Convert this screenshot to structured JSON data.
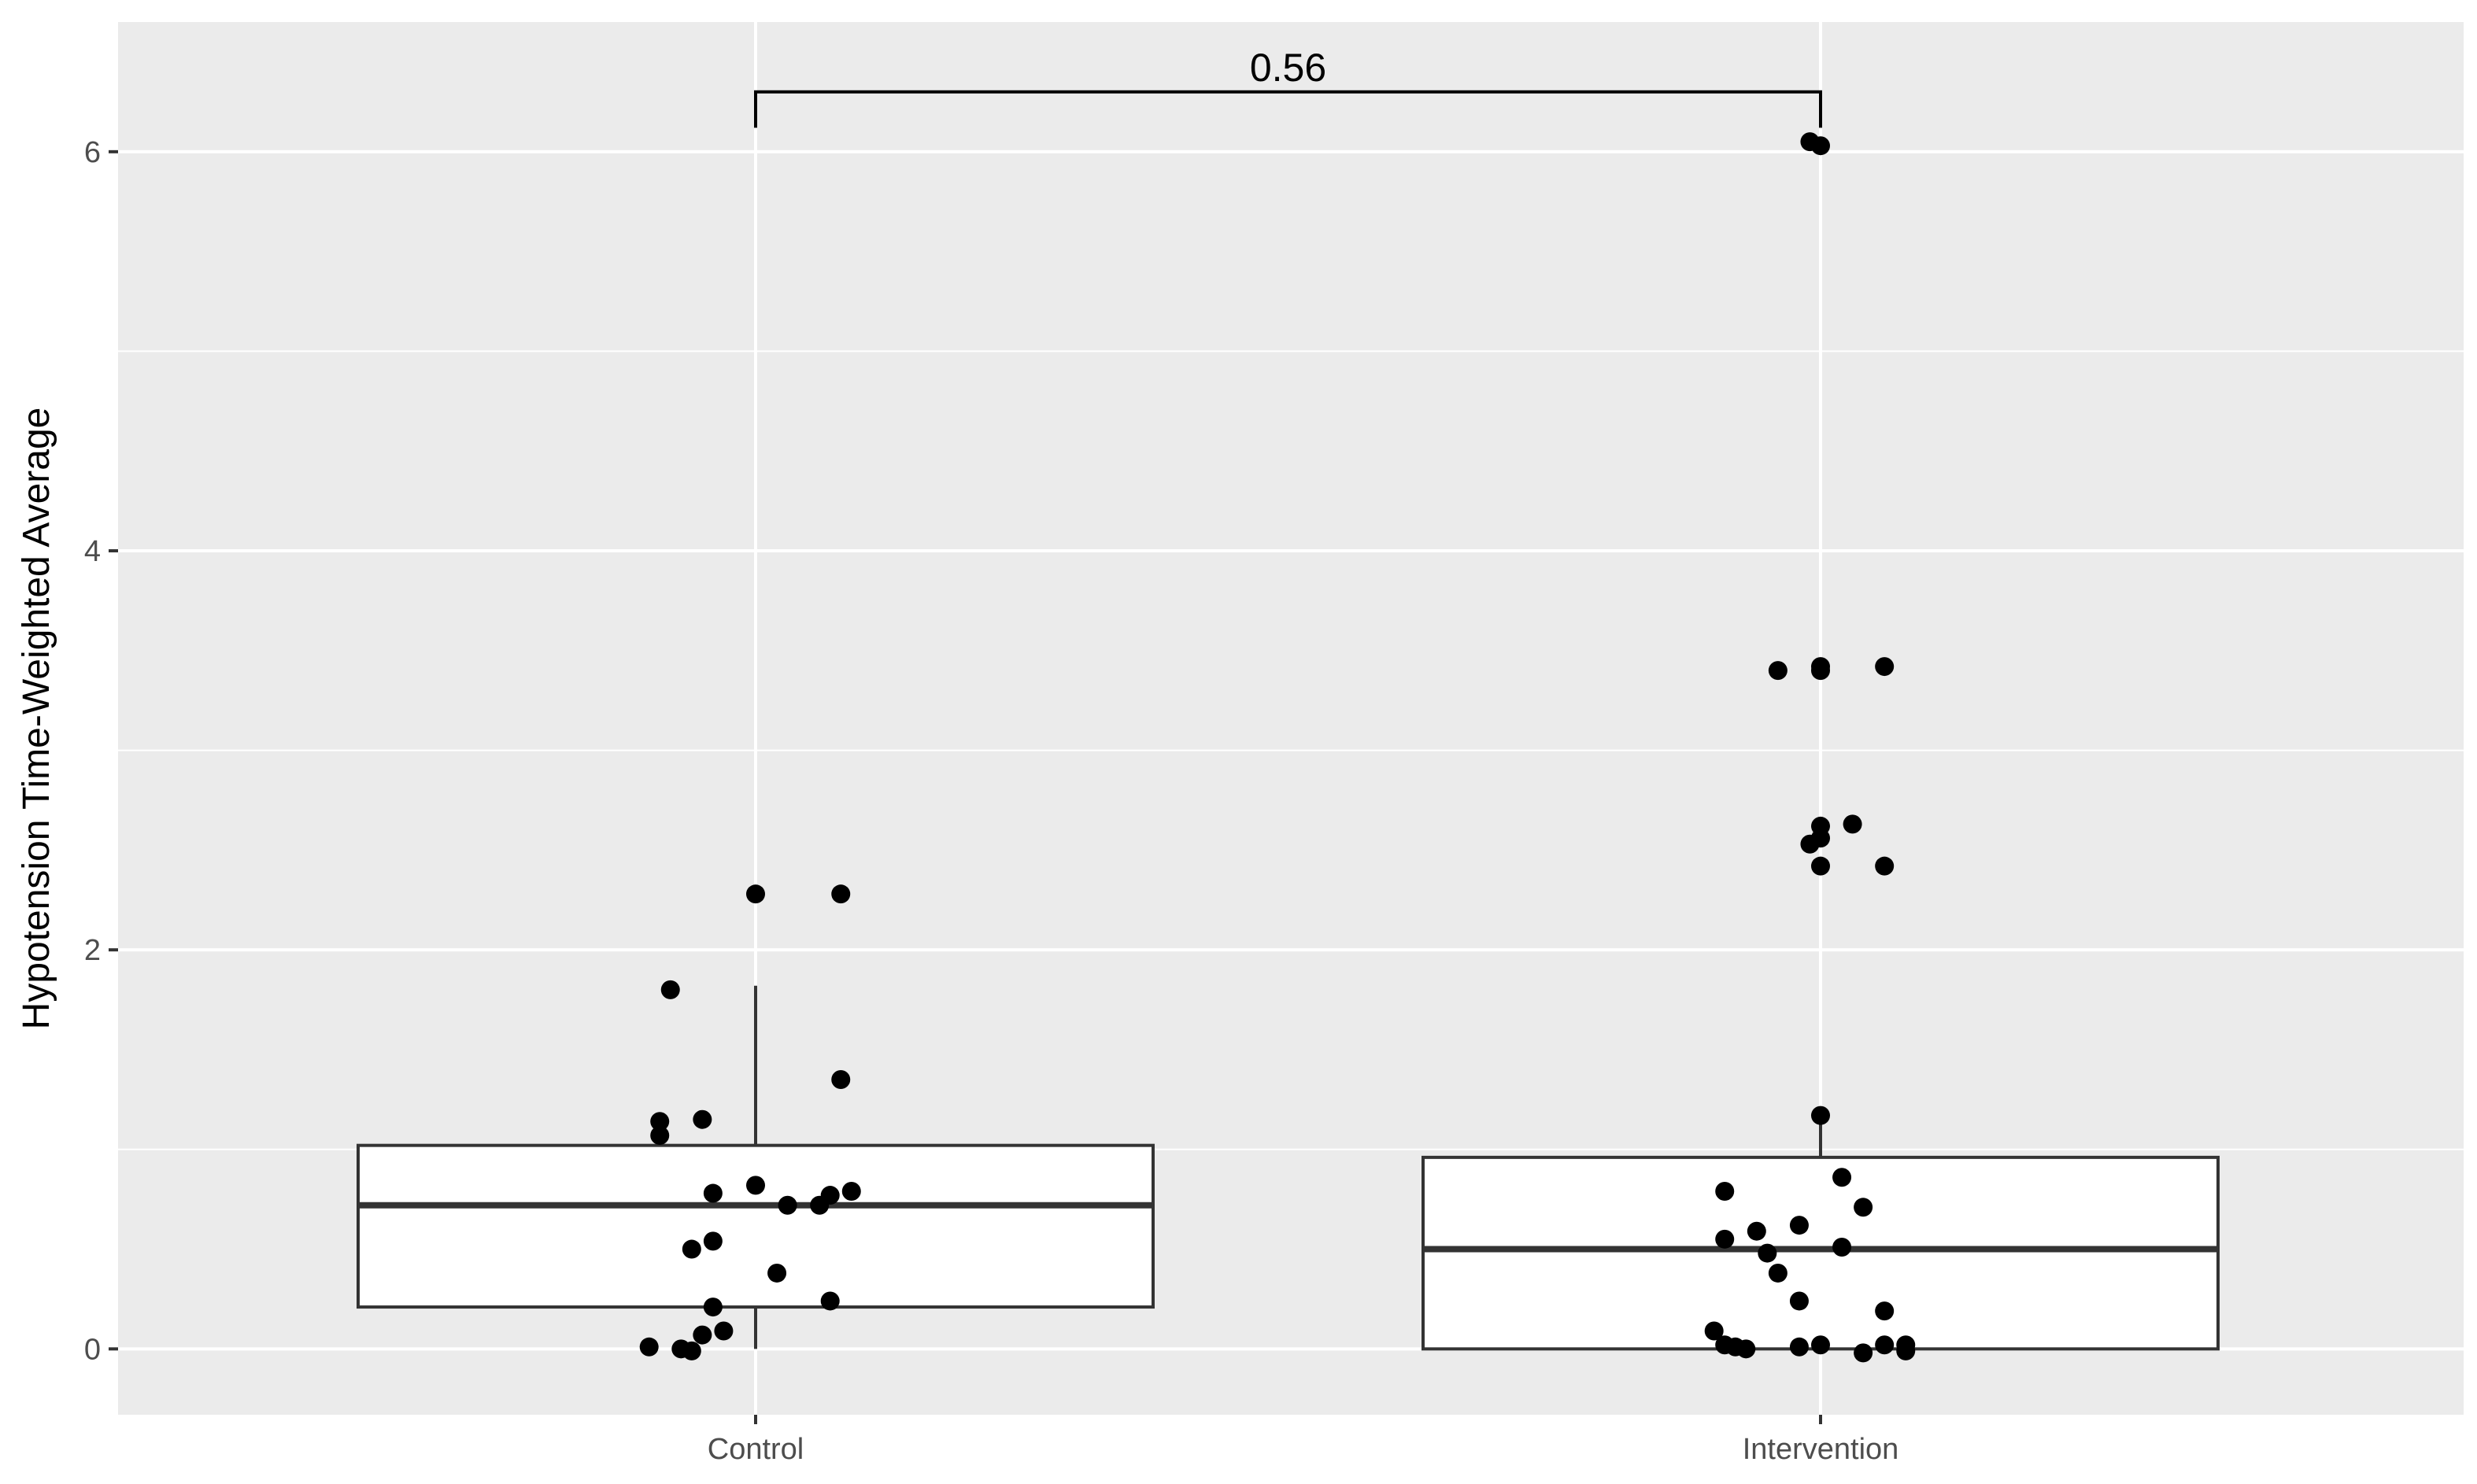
{
  "chart_data": {
    "type": "boxplot",
    "title": "",
    "xlabel": "",
    "ylabel": "Hypotension Time-Weighted Average",
    "ylim": [
      -0.33,
      6.65
    ],
    "yticks": [
      0,
      2,
      4,
      6
    ],
    "ytick_labels": [
      "0",
      "2",
      "4",
      "6"
    ],
    "grid": true,
    "categories": [
      "Control",
      "Intervention"
    ],
    "boxes": [
      {
        "category": "Control",
        "q1": 0.21,
        "median": 0.72,
        "q3": 1.02,
        "whisker_low": 0.0,
        "whisker_high": 1.82
      },
      {
        "category": "Intervention",
        "q1": 0.0,
        "median": 0.5,
        "q3": 0.96,
        "whisker_low": 0.0,
        "whisker_high": 1.17
      }
    ],
    "points": [
      {
        "category": "Control",
        "jitter": -0.1,
        "y": 0.01
      },
      {
        "category": "Control",
        "jitter": -0.07,
        "y": 0.0
      },
      {
        "category": "Control",
        "jitter": -0.06,
        "y": -0.01
      },
      {
        "category": "Control",
        "jitter": -0.05,
        "y": 0.07
      },
      {
        "category": "Control",
        "jitter": -0.03,
        "y": 0.09
      },
      {
        "category": "Control",
        "jitter": -0.04,
        "y": 0.21
      },
      {
        "category": "Control",
        "jitter": 0.07,
        "y": 0.24
      },
      {
        "category": "Control",
        "jitter": 0.02,
        "y": 0.38
      },
      {
        "category": "Control",
        "jitter": -0.06,
        "y": 0.5
      },
      {
        "category": "Control",
        "jitter": -0.04,
        "y": 0.54
      },
      {
        "category": "Control",
        "jitter": 0.03,
        "y": 0.72
      },
      {
        "category": "Control",
        "jitter": 0.06,
        "y": 0.72
      },
      {
        "category": "Control",
        "jitter": 0.07,
        "y": 0.77
      },
      {
        "category": "Control",
        "jitter": -0.04,
        "y": 0.78
      },
      {
        "category": "Control",
        "jitter": 0.0,
        "y": 0.82
      },
      {
        "category": "Control",
        "jitter": 0.09,
        "y": 0.79
      },
      {
        "category": "Control",
        "jitter": -0.09,
        "y": 1.07
      },
      {
        "category": "Control",
        "jitter": -0.09,
        "y": 1.14
      },
      {
        "category": "Control",
        "jitter": -0.05,
        "y": 1.15
      },
      {
        "category": "Control",
        "jitter": 0.08,
        "y": 1.35
      },
      {
        "category": "Control",
        "jitter": -0.08,
        "y": 1.8
      },
      {
        "category": "Control",
        "jitter": 0.0,
        "y": 2.28
      },
      {
        "category": "Control",
        "jitter": 0.08,
        "y": 2.28
      },
      {
        "category": "Intervention",
        "jitter": -0.1,
        "y": 0.09
      },
      {
        "category": "Intervention",
        "jitter": -0.09,
        "y": 0.02
      },
      {
        "category": "Intervention",
        "jitter": -0.08,
        "y": 0.01
      },
      {
        "category": "Intervention",
        "jitter": -0.07,
        "y": 0.0
      },
      {
        "category": "Intervention",
        "jitter": -0.02,
        "y": 0.01
      },
      {
        "category": "Intervention",
        "jitter": 0.0,
        "y": 0.02
      },
      {
        "category": "Intervention",
        "jitter": 0.04,
        "y": -0.02
      },
      {
        "category": "Intervention",
        "jitter": 0.06,
        "y": 0.02
      },
      {
        "category": "Intervention",
        "jitter": 0.08,
        "y": 0.02
      },
      {
        "category": "Intervention",
        "jitter": 0.08,
        "y": -0.01
      },
      {
        "category": "Intervention",
        "jitter": 0.06,
        "y": 0.19
      },
      {
        "category": "Intervention",
        "jitter": -0.02,
        "y": 0.24
      },
      {
        "category": "Intervention",
        "jitter": -0.04,
        "y": 0.38
      },
      {
        "category": "Intervention",
        "jitter": -0.05,
        "y": 0.48
      },
      {
        "category": "Intervention",
        "jitter": 0.02,
        "y": 0.51
      },
      {
        "category": "Intervention",
        "jitter": -0.09,
        "y": 0.55
      },
      {
        "category": "Intervention",
        "jitter": -0.06,
        "y": 0.59
      },
      {
        "category": "Intervention",
        "jitter": -0.02,
        "y": 0.62
      },
      {
        "category": "Intervention",
        "jitter": 0.04,
        "y": 0.71
      },
      {
        "category": "Intervention",
        "jitter": -0.09,
        "y": 0.79
      },
      {
        "category": "Intervention",
        "jitter": 0.02,
        "y": 0.86
      },
      {
        "category": "Intervention",
        "jitter": 0.0,
        "y": 1.17
      },
      {
        "category": "Intervention",
        "jitter": 0.0,
        "y": 2.42
      },
      {
        "category": "Intervention",
        "jitter": 0.06,
        "y": 2.42
      },
      {
        "category": "Intervention",
        "jitter": -0.01,
        "y": 2.53
      },
      {
        "category": "Intervention",
        "jitter": 0.0,
        "y": 2.56
      },
      {
        "category": "Intervention",
        "jitter": 0.0,
        "y": 2.62
      },
      {
        "category": "Intervention",
        "jitter": 0.03,
        "y": 2.63
      },
      {
        "category": "Intervention",
        "jitter": -0.04,
        "y": 3.4
      },
      {
        "category": "Intervention",
        "jitter": 0.0,
        "y": 3.4
      },
      {
        "category": "Intervention",
        "jitter": 0.0,
        "y": 3.42
      },
      {
        "category": "Intervention",
        "jitter": 0.06,
        "y": 3.42
      },
      {
        "category": "Intervention",
        "jitter": -0.01,
        "y": 6.05
      },
      {
        "category": "Intervention",
        "jitter": 0.0,
        "y": 6.03
      }
    ],
    "comparison": {
      "groups": [
        "Control",
        "Intervention"
      ],
      "label": "0.56",
      "bracket_y": 6.3,
      "bracket_drop_y": 6.12
    }
  }
}
